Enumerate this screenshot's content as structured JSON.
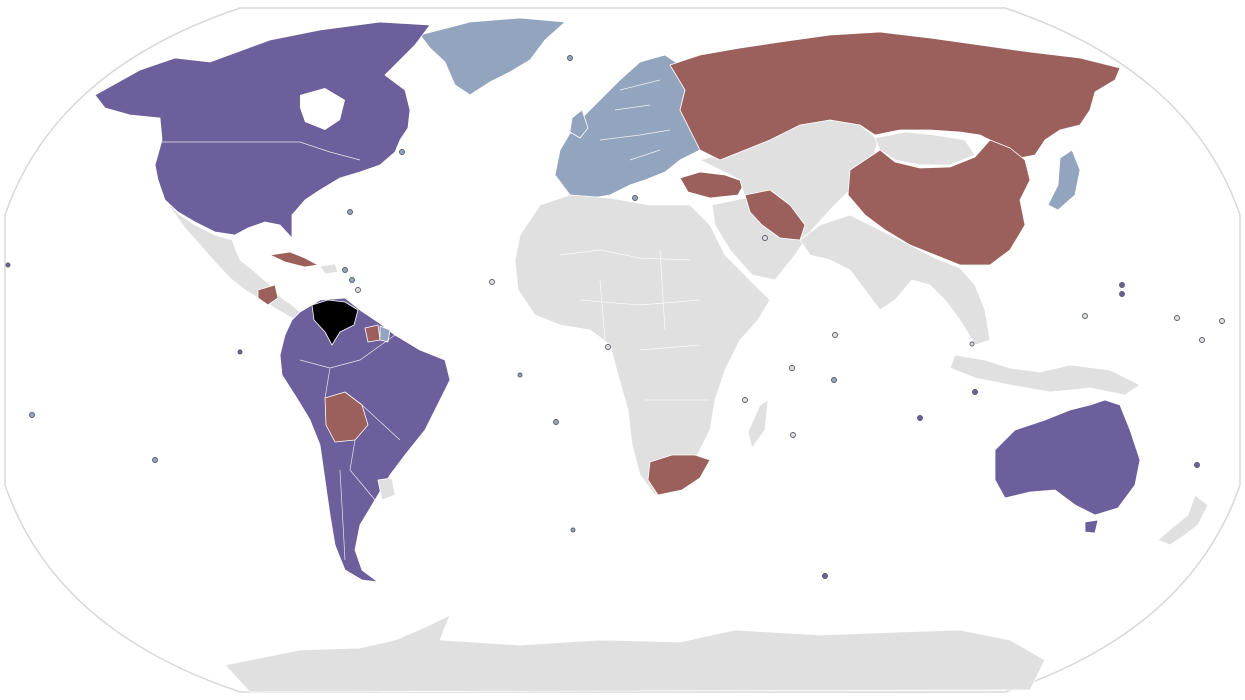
{
  "colors": {
    "background": "#ffffff",
    "frame": "#d8d8d8",
    "no_data": "#e0e0e0",
    "group_purple": "#6c5f9c",
    "group_lightblue": "#93a4bf",
    "group_red": "#9c605c",
    "focus_black": "#000000"
  },
  "regions": [
    {
      "name": "north-america",
      "group": "group_purple"
    },
    {
      "name": "greenland",
      "group": "group_lightblue"
    },
    {
      "name": "mexico-central-america",
      "group": "no_data"
    },
    {
      "name": "cuba",
      "group": "group_red"
    },
    {
      "name": "nicaragua",
      "group": "group_red"
    },
    {
      "name": "south-america",
      "group": "group_purple"
    },
    {
      "name": "venezuela",
      "group": "focus_black"
    },
    {
      "name": "guyana-suriname",
      "group": "group_lightblue"
    },
    {
      "name": "bolivia",
      "group": "group_red"
    },
    {
      "name": "uruguay",
      "group": "no_data"
    },
    {
      "name": "europe",
      "group": "group_lightblue"
    },
    {
      "name": "russia",
      "group": "group_red"
    },
    {
      "name": "china",
      "group": "group_red"
    },
    {
      "name": "iran",
      "group": "group_red"
    },
    {
      "name": "turkey",
      "group": "group_red"
    },
    {
      "name": "japan",
      "group": "group_lightblue"
    },
    {
      "name": "africa",
      "group": "no_data"
    },
    {
      "name": "south-africa",
      "group": "group_red"
    },
    {
      "name": "middle-east-central-asia",
      "group": "no_data"
    },
    {
      "name": "south-southeast-asia",
      "group": "no_data"
    },
    {
      "name": "mongolia",
      "group": "no_data"
    },
    {
      "name": "indonesia",
      "group": "no_data"
    },
    {
      "name": "australia",
      "group": "group_purple"
    },
    {
      "name": "new-zealand",
      "group": "no_data"
    },
    {
      "name": "antarctica",
      "group": "no_data"
    }
  ]
}
